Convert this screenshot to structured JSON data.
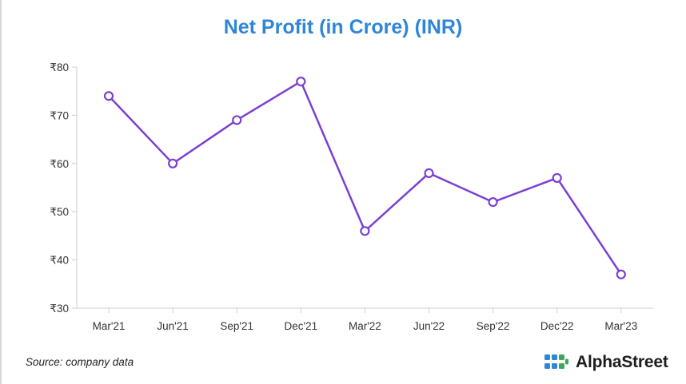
{
  "chart_data": {
    "type": "line",
    "title": "Net Profit (in Crore) (INR)",
    "categories": [
      "Mar'21",
      "Jun'21",
      "Sep'21",
      "Dec'21",
      "Mar'22",
      "Jun'22",
      "Sep'22",
      "Dec'22",
      "Mar'23"
    ],
    "series": [
      {
        "values": [
          74,
          60,
          69,
          77,
          46,
          58,
          52,
          57,
          37
        ]
      }
    ],
    "ylim": [
      30,
      80
    ],
    "yticks": [
      30,
      40,
      50,
      60,
      70,
      80
    ],
    "ytick_labels": [
      "₹30",
      "₹40",
      "₹50",
      "₹60",
      "₹70",
      "₹80"
    ],
    "xlabel": "",
    "ylabel": "",
    "grid": false,
    "line_color": "#7b3fd4"
  },
  "source": "Source: company data",
  "brand": {
    "name": "AlphaStreet",
    "logo": "alphastreet-logo-icon"
  },
  "colors": {
    "title": "#2f86d6",
    "axis": "#cfcfcf",
    "text": "#333333"
  }
}
